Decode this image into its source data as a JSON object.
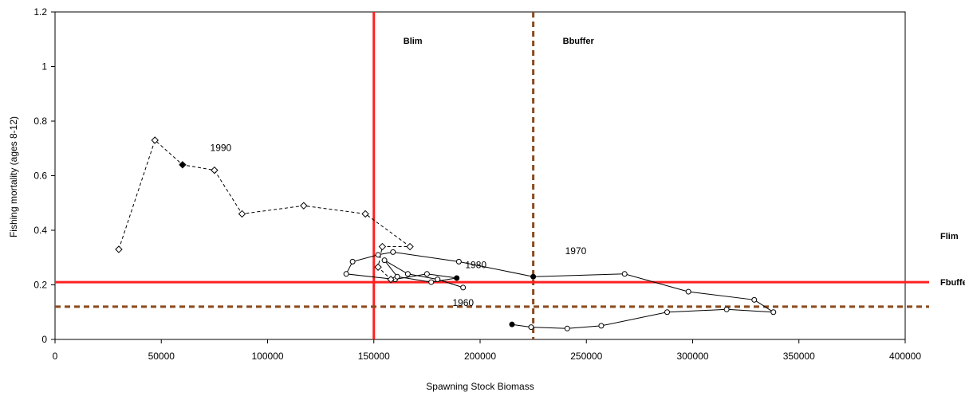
{
  "chart_data": {
    "type": "scatter",
    "title": "",
    "xlabel": "Spawning Stock Biomass",
    "ylabel": "Fishing mortality (ages 8-12)",
    "xlim": [
      0,
      400000
    ],
    "ylim": [
      0,
      1.2
    ],
    "x_ticks": [
      0,
      50000,
      100000,
      150000,
      200000,
      250000,
      300000,
      350000,
      400000
    ],
    "y_ticks": [
      0,
      0.2,
      0.4,
      0.6,
      0.8,
      1,
      1.2
    ],
    "grid": false,
    "reference_lines": [
      {
        "label": "Blim",
        "axis": "x",
        "value": 150000,
        "color": "#ff2020",
        "style": "solid"
      },
      {
        "label": "Bbuffer",
        "axis": "x",
        "value": 225000,
        "color": "#8b4a1e",
        "style": "dashed"
      },
      {
        "label": "Flim",
        "axis": "y",
        "value": 0.21,
        "color": "#ff2020",
        "style": "solid"
      },
      {
        "label": "Fbuffer",
        "axis": "y",
        "value": 0.12,
        "color": "#8b4a1e",
        "style": "dashed"
      }
    ],
    "series": [
      {
        "marker": "circle",
        "style": "solid",
        "points": [
          [
            215000,
            0.055
          ],
          [
            224000,
            0.045
          ],
          [
            241000,
            0.04
          ],
          [
            257000,
            0.05
          ],
          [
            288000,
            0.1
          ],
          [
            316000,
            0.11
          ],
          [
            338000,
            0.1
          ],
          [
            329000,
            0.145
          ],
          [
            298000,
            0.175
          ],
          [
            268000,
            0.24
          ],
          [
            225000,
            0.23
          ],
          [
            190000,
            0.285
          ],
          [
            159000,
            0.32
          ],
          [
            152000,
            0.31
          ],
          [
            140000,
            0.285
          ],
          [
            137000,
            0.24
          ],
          [
            160000,
            0.22
          ],
          [
            175000,
            0.24
          ],
          [
            189000,
            0.225
          ],
          [
            177000,
            0.21
          ],
          [
            161000,
            0.23
          ],
          [
            155000,
            0.29
          ],
          [
            166000,
            0.24
          ],
          [
            180000,
            0.22
          ],
          [
            192000,
            0.19
          ]
        ]
      },
      {
        "marker": "diamond",
        "style": "dashed",
        "points": [
          [
            30000,
            0.33
          ],
          [
            47000,
            0.73
          ],
          [
            60000,
            0.64
          ],
          [
            75000,
            0.62
          ],
          [
            88000,
            0.46
          ],
          [
            117000,
            0.49
          ],
          [
            146000,
            0.46
          ],
          [
            167000,
            0.34
          ],
          [
            154000,
            0.34
          ],
          [
            152000,
            0.265
          ],
          [
            158000,
            0.22
          ]
        ]
      }
    ],
    "highlighted_points": [
      [
        60000,
        0.64
      ],
      [
        189000,
        0.225
      ],
      [
        225000,
        0.23
      ],
      [
        215000,
        0.055
      ]
    ],
    "annotations": [
      {
        "text": "1990",
        "x": 73000,
        "y": 0.69
      },
      {
        "text": "1980",
        "x": 193000,
        "y": 0.262
      },
      {
        "text": "1970",
        "x": 240000,
        "y": 0.312
      },
      {
        "text": "1960",
        "x": 187000,
        "y": 0.122
      }
    ]
  }
}
